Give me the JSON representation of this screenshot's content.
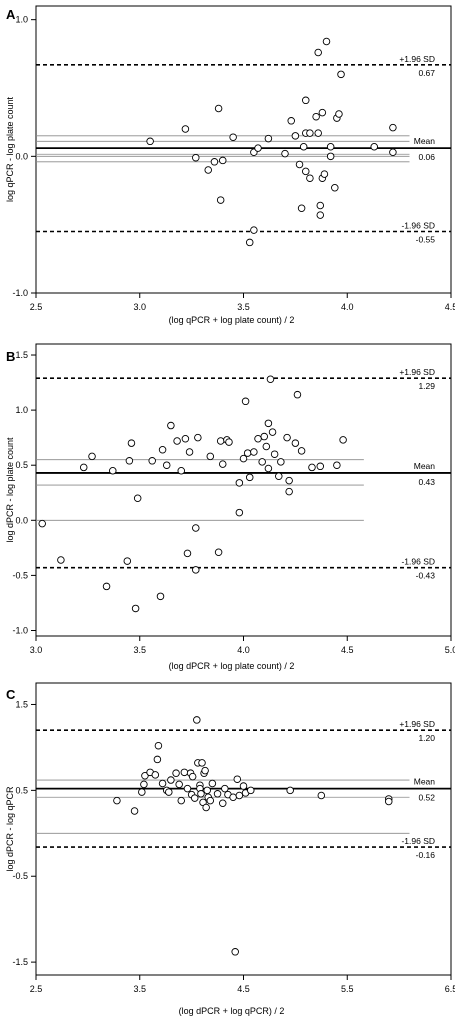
{
  "chart_data": [
    {
      "panel": "A",
      "type": "scatter",
      "xlabel": "(log qPCR + log plate count) / 2",
      "ylabel": "log qPCR - log plate count",
      "xlim": [
        2.5,
        4.5
      ],
      "ylim": [
        -1.0,
        1.1
      ],
      "xticks": [
        2.5,
        3.0,
        3.5,
        4.0,
        4.5
      ],
      "xtick_labels": [
        "2.5",
        "3.0",
        "3.5",
        "4.0",
        "4.5"
      ],
      "yticks": [
        -1.0,
        0.0,
        1.0
      ],
      "ytick_labels": [
        "-1.0",
        "0.0",
        "1.0"
      ],
      "reference_lines": {
        "upper_label": "+1.96 SD",
        "upper_value_label": "0.67",
        "upper": 0.67,
        "mean_label": "Mean",
        "mean_value_label": "0.06",
        "mean": 0.06,
        "lower_label": "-1.96 SD",
        "lower_value_label": "-0.55",
        "lower": -0.55,
        "mean_ci": [
          0.015,
          0.11
        ],
        "upper_ci_thin": 0.15,
        "lower_ci_thin": -0.04,
        "zero": 0.0,
        "x_range": [
          2.5,
          4.3
        ]
      },
      "points": [
        [
          3.05,
          0.11
        ],
        [
          3.22,
          0.2
        ],
        [
          3.27,
          -0.01
        ],
        [
          3.33,
          -0.1
        ],
        [
          3.36,
          -0.04
        ],
        [
          3.38,
          0.35
        ],
        [
          3.39,
          -0.32
        ],
        [
          3.4,
          -0.03
        ],
        [
          3.45,
          0.14
        ],
        [
          3.53,
          -0.63
        ],
        [
          3.55,
          -0.54
        ],
        [
          3.55,
          0.03
        ],
        [
          3.57,
          0.06
        ],
        [
          3.62,
          0.13
        ],
        [
          3.7,
          0.02
        ],
        [
          3.73,
          0.26
        ],
        [
          3.75,
          0.15
        ],
        [
          3.77,
          -0.06
        ],
        [
          3.78,
          -0.38
        ],
        [
          3.79,
          0.07
        ],
        [
          3.8,
          -0.11
        ],
        [
          3.8,
          0.17
        ],
        [
          3.8,
          0.41
        ],
        [
          3.82,
          -0.16
        ],
        [
          3.82,
          0.17
        ],
        [
          3.85,
          0.29
        ],
        [
          3.86,
          0.17
        ],
        [
          3.86,
          0.76
        ],
        [
          3.87,
          -0.36
        ],
        [
          3.87,
          -0.43
        ],
        [
          3.88,
          0.32
        ],
        [
          3.88,
          -0.16
        ],
        [
          3.89,
          -0.13
        ],
        [
          3.9,
          0.84
        ],
        [
          3.92,
          0.0
        ],
        [
          3.92,
          0.07
        ],
        [
          3.94,
          -0.23
        ],
        [
          3.95,
          0.28
        ],
        [
          3.96,
          0.31
        ],
        [
          3.97,
          0.6
        ],
        [
          4.13,
          0.07
        ],
        [
          4.22,
          0.21
        ],
        [
          4.22,
          0.03
        ]
      ]
    },
    {
      "panel": "B",
      "type": "scatter",
      "xlabel": "(log dPCR +  log plate count) / 2",
      "ylabel": "log dPCR - log plate count",
      "xlim": [
        3.0,
        5.0
      ],
      "ylim": [
        -1.05,
        1.6
      ],
      "xticks": [
        3.0,
        3.5,
        4.0,
        4.5,
        5.0
      ],
      "xtick_labels": [
        "3.0",
        "3.5",
        "4.0",
        "4.5",
        "5.0"
      ],
      "yticks": [
        -1.0,
        -0.5,
        0.0,
        0.5,
        1.0,
        1.5
      ],
      "ytick_labels": [
        "-1.0",
        "-0.5",
        "0.0",
        "0.5",
        "1.0",
        "1.5"
      ],
      "reference_lines": {
        "upper_label": "+1.96 SD",
        "upper_value_label": "1.29",
        "upper": 1.29,
        "mean_label": "Mean",
        "mean_value_label": "0.43",
        "mean": 0.43,
        "lower_label": "-1.96 SD",
        "lower_value_label": "-0.43",
        "lower": -0.43,
        "mean_ci": [
          0.32,
          0.55
        ],
        "zero": 0.0,
        "x_range": [
          3.0,
          4.58
        ]
      },
      "points": [
        [
          3.03,
          -0.03
        ],
        [
          3.12,
          -0.36
        ],
        [
          3.23,
          0.48
        ],
        [
          3.27,
          0.58
        ],
        [
          3.34,
          -0.6
        ],
        [
          3.37,
          0.45
        ],
        [
          3.44,
          -0.37
        ],
        [
          3.45,
          0.54
        ],
        [
          3.46,
          0.7
        ],
        [
          3.48,
          -0.8
        ],
        [
          3.49,
          0.2
        ],
        [
          3.56,
          0.54
        ],
        [
          3.6,
          -0.69
        ],
        [
          3.61,
          0.64
        ],
        [
          3.63,
          0.5
        ],
        [
          3.65,
          0.86
        ],
        [
          3.68,
          0.72
        ],
        [
          3.7,
          0.45
        ],
        [
          3.72,
          0.74
        ],
        [
          3.73,
          -0.3
        ],
        [
          3.74,
          0.62
        ],
        [
          3.77,
          -0.07
        ],
        [
          3.77,
          -0.45
        ],
        [
          3.78,
          0.75
        ],
        [
          3.84,
          0.58
        ],
        [
          3.88,
          -0.29
        ],
        [
          3.89,
          0.72
        ],
        [
          3.9,
          0.51
        ],
        [
          3.92,
          0.73
        ],
        [
          3.93,
          0.71
        ],
        [
          3.98,
          0.34
        ],
        [
          3.98,
          0.07
        ],
        [
          4.0,
          0.56
        ],
        [
          4.01,
          1.08
        ],
        [
          4.02,
          0.61
        ],
        [
          4.03,
          0.39
        ],
        [
          4.05,
          0.62
        ],
        [
          4.07,
          0.74
        ],
        [
          4.09,
          0.53
        ],
        [
          4.1,
          0.76
        ],
        [
          4.11,
          0.67
        ],
        [
          4.12,
          0.88
        ],
        [
          4.12,
          0.47
        ],
        [
          4.13,
          1.28
        ],
        [
          4.14,
          0.8
        ],
        [
          4.15,
          0.6
        ],
        [
          4.17,
          0.4
        ],
        [
          4.18,
          0.53
        ],
        [
          4.21,
          0.75
        ],
        [
          4.22,
          0.36
        ],
        [
          4.22,
          0.26
        ],
        [
          4.25,
          0.7
        ],
        [
          4.26,
          1.14
        ],
        [
          4.28,
          0.63
        ],
        [
          4.33,
          0.48
        ],
        [
          4.37,
          0.49
        ],
        [
          4.45,
          0.5
        ],
        [
          4.48,
          0.73
        ]
      ]
    },
    {
      "panel": "C",
      "type": "scatter",
      "xlabel": "(log dPCR + log qPCR) / 2",
      "ylabel": "log dPCR - log qPCR",
      "xlim": [
        2.5,
        6.5
      ],
      "ylim": [
        -1.65,
        1.75
      ],
      "xticks": [
        2.5,
        3.5,
        4.5,
        5.5,
        6.5
      ],
      "xtick_labels": [
        "2.5",
        "3.5",
        "4.5",
        "5.5",
        "6.5"
      ],
      "yticks": [
        -1.5,
        -0.5,
        0.5,
        1.5
      ],
      "ytick_labels": [
        "-1.5",
        "-0.5",
        "0.5",
        "1.5"
      ],
      "reference_lines": {
        "upper_label": "+1.96 SD",
        "upper_value_label": "1.20",
        "upper": 1.2,
        "mean_label": "Mean",
        "mean_value_label": "0.52",
        "mean": 0.52,
        "lower_label": "-1.96 SD",
        "lower_value_label": "-0.16",
        "lower": -0.16,
        "mean_ci": [
          0.42,
          0.62
        ],
        "zero": 0.0,
        "x_range": [
          2.5,
          6.1
        ]
      },
      "points": [
        [
          3.28,
          0.38
        ],
        [
          3.45,
          0.26
        ],
        [
          3.52,
          0.48
        ],
        [
          3.54,
          0.57
        ],
        [
          3.55,
          0.67
        ],
        [
          3.6,
          0.71
        ],
        [
          3.65,
          0.68
        ],
        [
          3.67,
          0.86
        ],
        [
          3.68,
          1.02
        ],
        [
          3.72,
          0.58
        ],
        [
          3.76,
          0.5
        ],
        [
          3.78,
          0.48
        ],
        [
          3.8,
          0.62
        ],
        [
          3.85,
          0.7
        ],
        [
          3.88,
          0.57
        ],
        [
          3.9,
          0.38
        ],
        [
          3.93,
          0.71
        ],
        [
          3.96,
          0.52
        ],
        [
          3.99,
          0.7
        ],
        [
          4.0,
          0.45
        ],
        [
          4.01,
          0.66
        ],
        [
          4.03,
          0.41
        ],
        [
          4.05,
          1.32
        ],
        [
          4.06,
          0.82
        ],
        [
          4.08,
          0.56
        ],
        [
          4.08,
          0.52
        ],
        [
          4.09,
          0.46
        ],
        [
          4.1,
          0.82
        ],
        [
          4.11,
          0.36
        ],
        [
          4.12,
          0.7
        ],
        [
          4.13,
          0.73
        ],
        [
          4.14,
          0.3
        ],
        [
          4.15,
          0.5
        ],
        [
          4.16,
          0.42
        ],
        [
          4.18,
          0.38
        ],
        [
          4.2,
          0.58
        ],
        [
          4.25,
          0.46
        ],
        [
          4.3,
          0.35
        ],
        [
          4.32,
          0.52
        ],
        [
          4.35,
          0.45
        ],
        [
          4.4,
          0.42
        ],
        [
          4.42,
          -1.38
        ],
        [
          4.44,
          0.63
        ],
        [
          4.46,
          0.44
        ],
        [
          4.5,
          0.55
        ],
        [
          4.52,
          0.47
        ],
        [
          4.57,
          0.5
        ],
        [
          4.95,
          0.5
        ],
        [
          5.25,
          0.44
        ],
        [
          5.9,
          0.4
        ],
        [
          5.9,
          0.37
        ]
      ]
    }
  ]
}
